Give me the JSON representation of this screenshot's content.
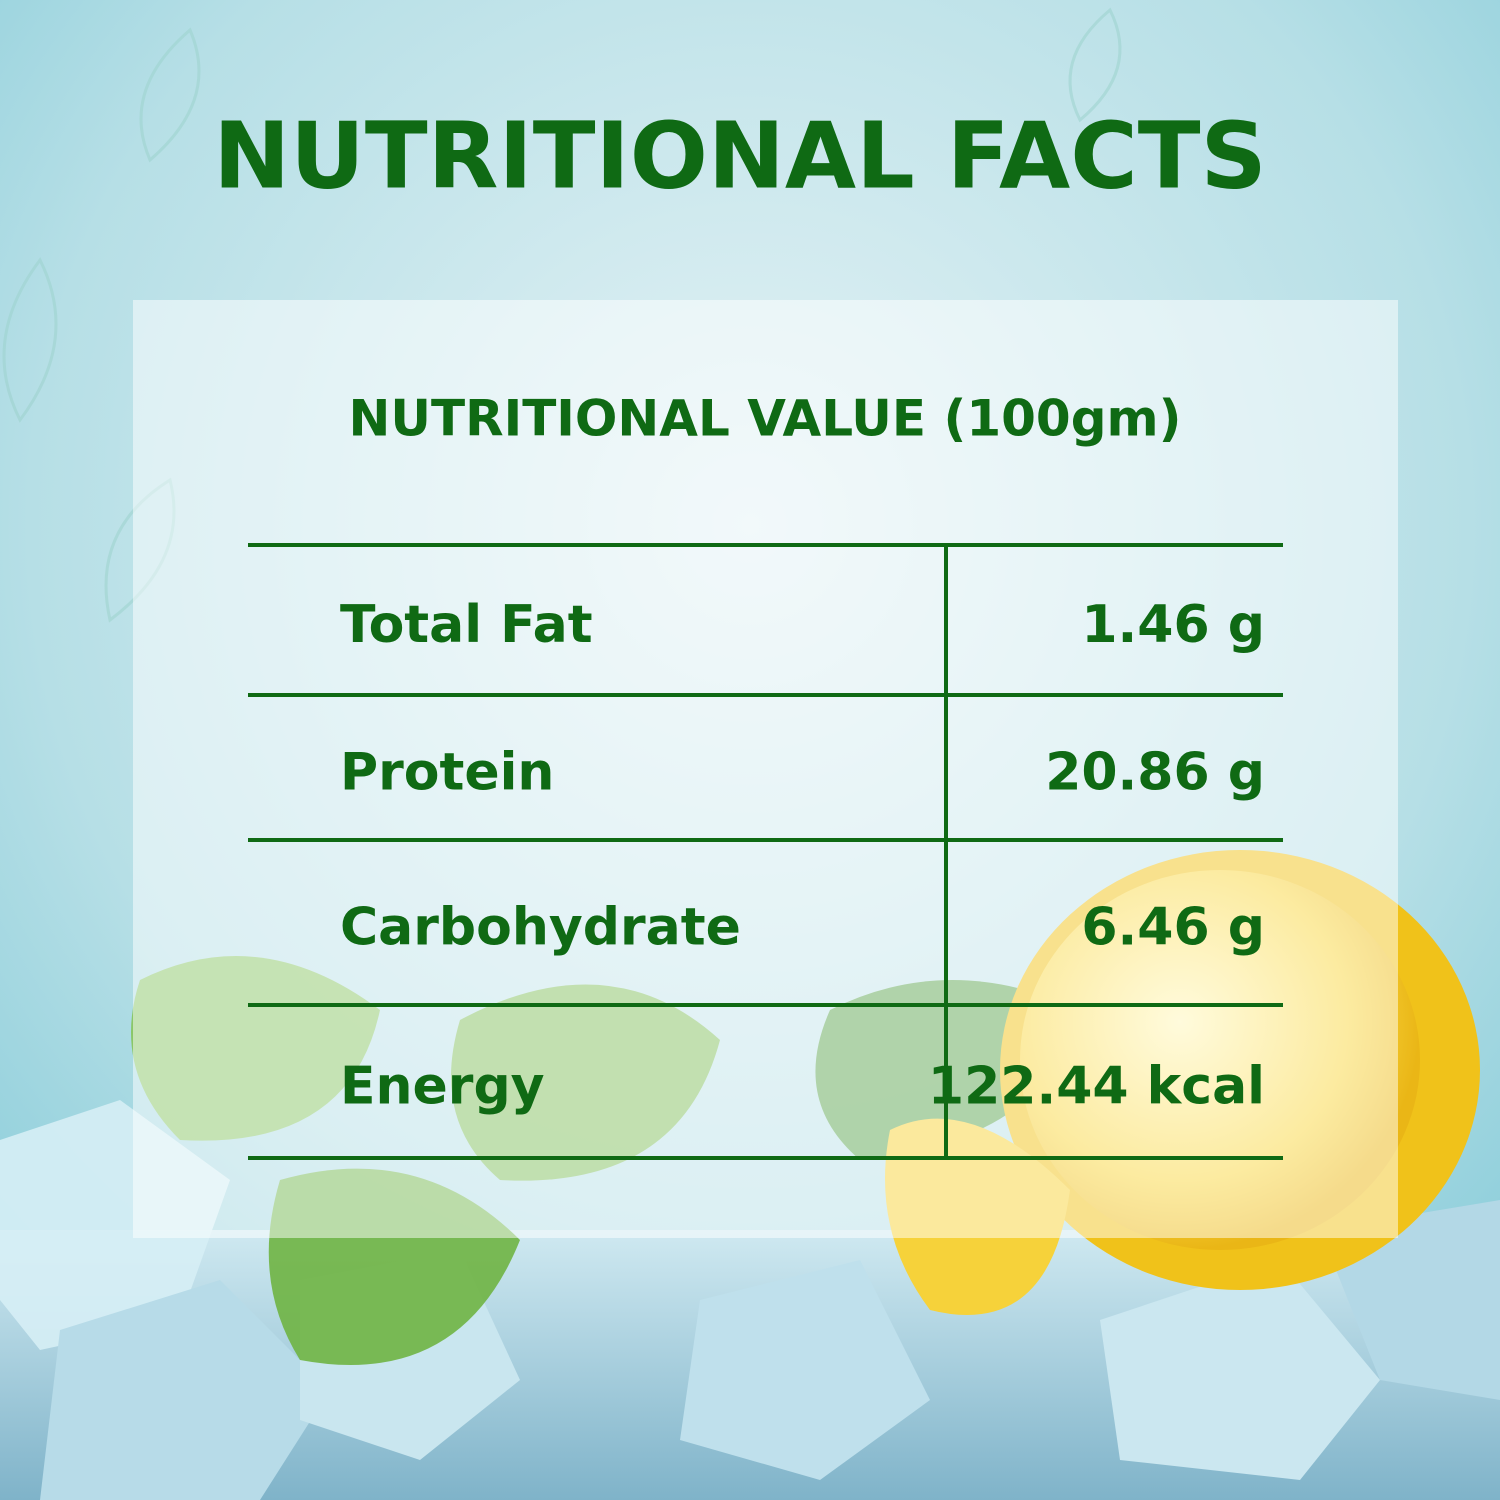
{
  "title": "NUTRITIONAL FACTS",
  "panel": {
    "heading": "NUTRITIONAL VALUE (100gm)"
  },
  "table": {
    "rows": [
      [
        "Total Fat",
        "1.46 g"
      ],
      [
        "Protein",
        "20.86 g"
      ],
      [
        "Carbohydrate",
        "6.46 g"
      ],
      [
        "Energy",
        "122.44 kcal"
      ]
    ]
  }
}
